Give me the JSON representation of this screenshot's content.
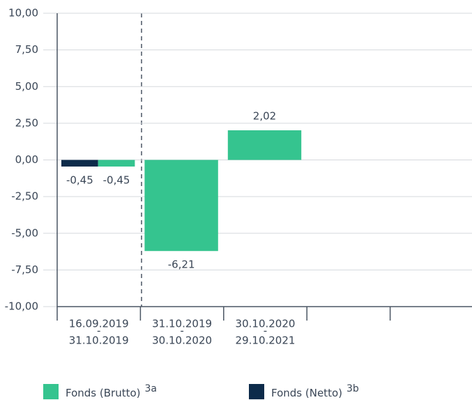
{
  "chart_data": {
    "type": "bar",
    "categories": [
      [
        "16.09.2019",
        "-",
        "31.10.2019"
      ],
      [
        "31.10.2019",
        "-",
        "30.10.2020"
      ],
      [
        "30.10.2020",
        "-",
        "29.10.2021"
      ],
      null,
      null
    ],
    "series": [
      {
        "name": "Fonds (Netto)",
        "footnote": "3b",
        "color": "#0d2b4a",
        "values": [
          -0.45,
          null,
          null,
          null,
          null
        ],
        "value_labels": [
          "-0,45",
          null,
          null,
          null,
          null
        ]
      },
      {
        "name": "Fonds (Brutto)",
        "footnote": "3a",
        "color": "#35c48f",
        "values": [
          -0.45,
          -6.21,
          2.02,
          null,
          null
        ],
        "value_labels": [
          "-0,45",
          "-6,21",
          "2,02",
          null,
          null
        ]
      }
    ],
    "legend_order": [
      1,
      0
    ],
    "ylim": [
      -10,
      10
    ],
    "yticks": [
      {
        "value": -10,
        "label": "-10,00"
      },
      {
        "value": -7.5,
        "label": "-7,50"
      },
      {
        "value": -5,
        "label": "-5,00"
      },
      {
        "value": -2.5,
        "label": "-2,50"
      },
      {
        "value": 0,
        "label": "0,00"
      },
      {
        "value": 2.5,
        "label": "2,50"
      },
      {
        "value": 5,
        "label": "5,00"
      },
      {
        "value": 7.5,
        "label": "7,50"
      },
      {
        "value": 10,
        "label": "10,00"
      }
    ],
    "grid": true
  }
}
